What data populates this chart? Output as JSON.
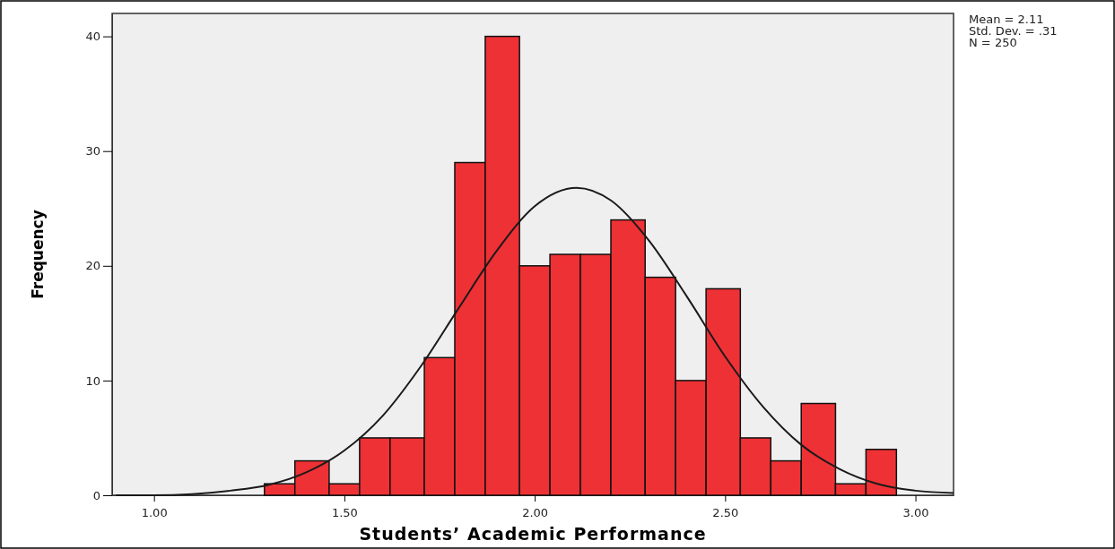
{
  "chart_data": {
    "type": "histogram",
    "xlabel": "Students’ Academic Performance",
    "ylabel": "Frequency",
    "bins": [
      1.29,
      1.37,
      1.46,
      1.54,
      1.62,
      1.71,
      1.79,
      1.87,
      1.96,
      2.04,
      2.12,
      2.2,
      2.29,
      2.37,
      2.45,
      2.54,
      2.62,
      2.7,
      2.79,
      2.87,
      2.95
    ],
    "values": [
      1,
      3,
      1,
      5,
      5,
      12,
      29,
      40,
      20,
      21,
      21,
      24,
      19,
      10,
      18,
      5,
      3,
      8,
      1,
      4
    ],
    "color": "#ee3135",
    "series": [
      {
        "type": "line",
        "color": "#1a1a1a",
        "x": [
          0.9,
          1.0,
          1.1,
          1.2,
          1.3,
          1.4,
          1.5,
          1.6,
          1.7,
          1.8,
          1.9,
          2.0,
          2.11,
          2.2,
          2.3,
          2.4,
          2.5,
          2.6,
          2.7,
          2.8,
          2.9,
          3.0,
          3.1
        ],
        "values": [
          0.0,
          0.0,
          0.1,
          0.4,
          0.9,
          2.0,
          3.9,
          6.9,
          11.2,
          16.3,
          21.3,
          25.2,
          26.8,
          25.7,
          22.2,
          17.3,
          12.1,
          7.7,
          4.4,
          2.3,
          1.0,
          0.4,
          0.2
        ]
      }
    ],
    "xlim": [
      0.89,
      3.1
    ],
    "xticks": [
      {
        "value": 1,
        "label": "1.00"
      },
      {
        "value": 1.5,
        "label": "1.50"
      },
      {
        "value": 2,
        "label": "2.00"
      },
      {
        "value": 2.5,
        "label": "2.50"
      },
      {
        "value": 3,
        "label": "3.00"
      }
    ],
    "ylim": [
      0,
      42
    ],
    "yticks": [
      0,
      10,
      20,
      30,
      40
    ],
    "grid": false,
    "marker": "none",
    "line_style": "solid",
    "annotations": [
      "Mean = 2.11\nStd. Dev. = .31\nN = 250"
    ]
  }
}
